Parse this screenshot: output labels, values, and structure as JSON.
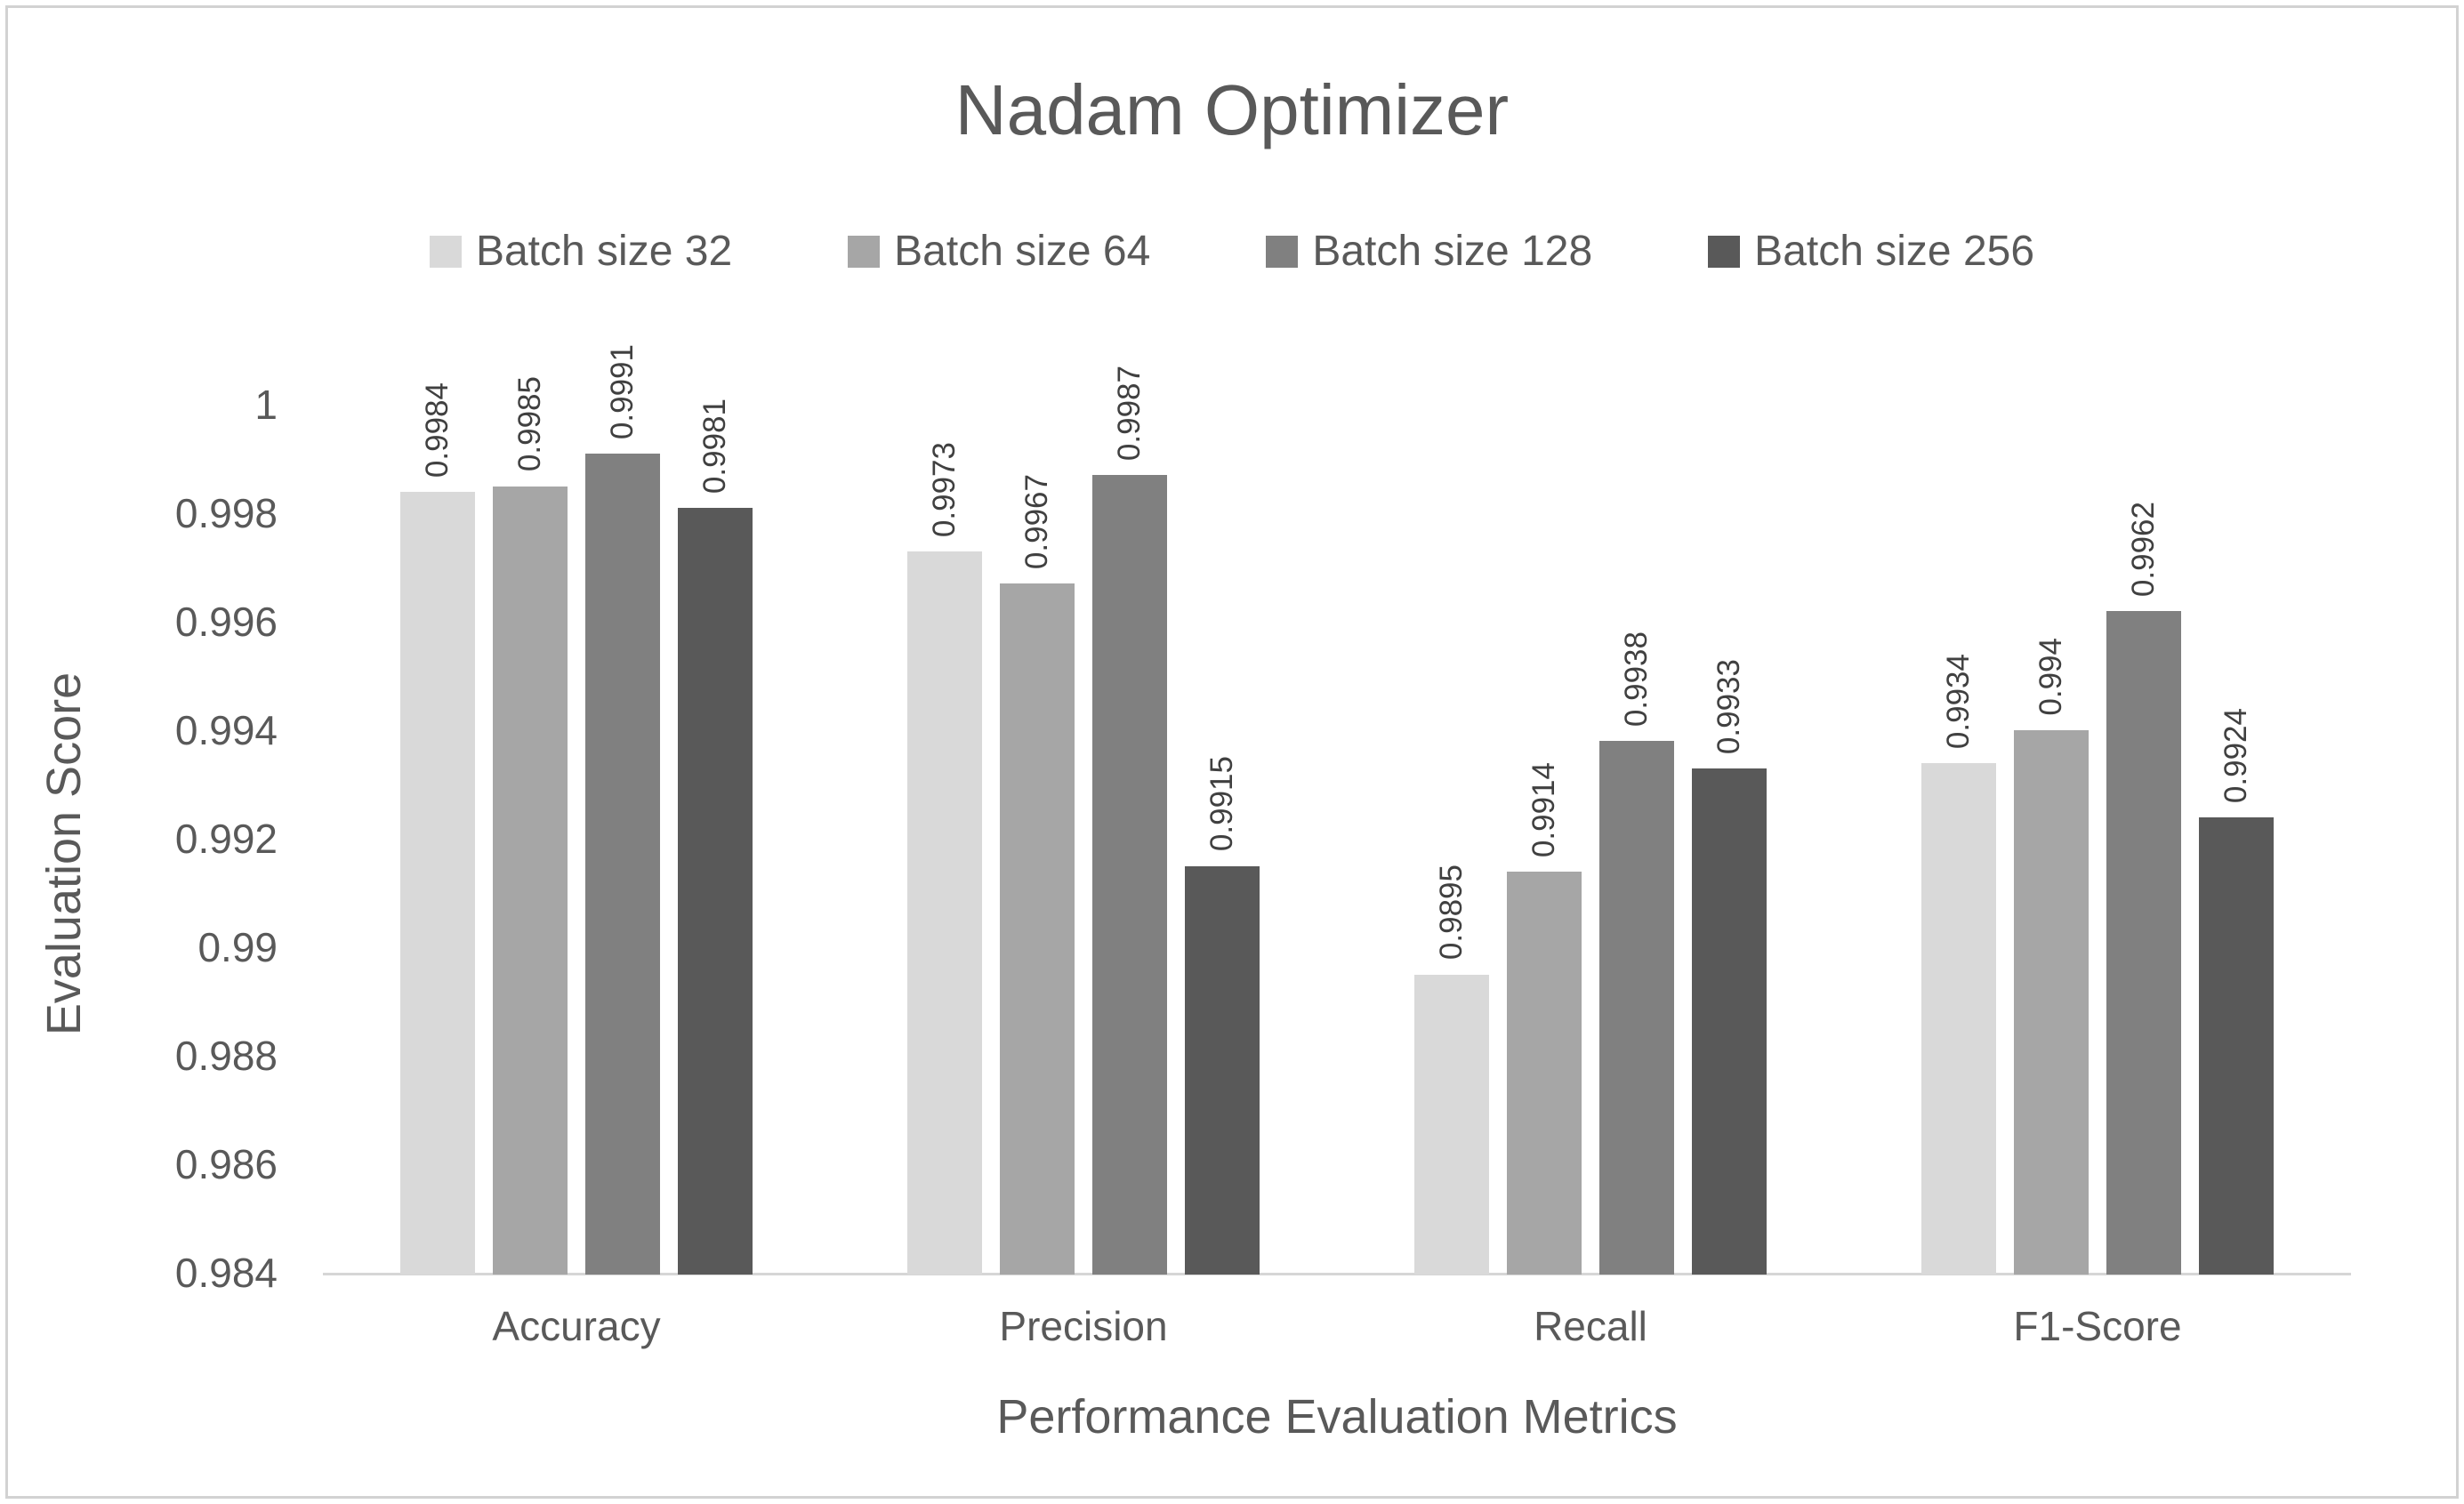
{
  "chart_data": {
    "type": "bar",
    "title": "Nadam Optimizer",
    "xlabel": "Performance Evaluation Metrics",
    "ylabel": "Evaluation Score",
    "categories": [
      "Accuracy",
      "Precision",
      "Recall",
      "F1-Score"
    ],
    "series": [
      {
        "name": "Batch size 32",
        "color": "#d9d9d9",
        "values": [
          0.9984,
          0.9973,
          0.9895,
          0.9934
        ],
        "labels": [
          "0.9984",
          "0.9973",
          "0.9895",
          "0.9934"
        ]
      },
      {
        "name": "Batch size 64",
        "color": "#a6a6a6",
        "values": [
          0.9985,
          0.9967,
          0.9914,
          0.994
        ],
        "labels": [
          "0.9985",
          "0.9967",
          "0.9914",
          "0.994"
        ]
      },
      {
        "name": "Batch size 128",
        "color": "#808080",
        "values": [
          0.9991,
          0.9987,
          0.9938,
          0.9962
        ],
        "labels": [
          "0.9991",
          "0.9987",
          "0.9938",
          "0.9962"
        ]
      },
      {
        "name": "Batch size 256",
        "color": "#595959",
        "values": [
          0.9981,
          0.9915,
          0.9933,
          0.9924
        ],
        "labels": [
          "0.9981",
          "0.9915",
          "0.9933",
          "0.9924"
        ]
      }
    ],
    "ylim": [
      0.984,
      1.0
    ],
    "yticks": [
      "0.984",
      "0.986",
      "0.988",
      "0.99",
      "0.992",
      "0.994",
      "0.996",
      "0.998",
      "1"
    ],
    "legend_position": "top",
    "grid": false,
    "colors": {
      "text": "#595959",
      "data_label": "#404040",
      "axis_line": "#d6d6d6",
      "frame_border": "#d2d2d2",
      "background": "#ffffff"
    }
  }
}
